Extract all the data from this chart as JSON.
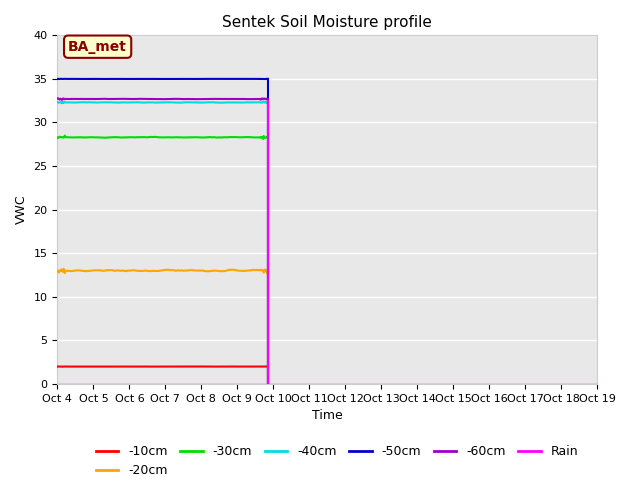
{
  "title": "Sentek Soil Moisture profile",
  "xlabel": "Time",
  "ylabel": "VWC",
  "xlim_days": [
    0,
    15
  ],
  "ylim": [
    0,
    40
  ],
  "x_tick_labels": [
    "Oct 4",
    "Oct 5",
    "Oct 6",
    "Oct 7",
    "Oct 8",
    "Oct 9",
    "Oct 10",
    "Oct 11",
    "Oct 12",
    "Oct 13",
    "Oct 14",
    "Oct 15",
    "Oct 16",
    "Oct 17",
    "Oct 18",
    "Oct 19"
  ],
  "annotation_text": "BA_met",
  "cutoff_day": 5.85,
  "series": {
    "-10cm": {
      "color": "#ff0000",
      "value": 2.0,
      "noise": 0.01
    },
    "-20cm": {
      "color": "#ffa500",
      "value": 13.0,
      "noise": 0.15
    },
    "-30cm": {
      "color": "#00dd00",
      "value": 28.3,
      "noise": 0.06
    },
    "-40cm": {
      "color": "#00dddd",
      "value": 32.3,
      "noise": 0.05
    },
    "-50cm": {
      "color": "#0000cc",
      "value": 35.0,
      "noise": 0.01
    },
    "-60cm": {
      "color": "#9900cc",
      "value": 32.7,
      "noise": 0.04
    }
  },
  "rain_color": "#ff00ff",
  "background_color": "#e8e8e8",
  "grid_color": "#ffffff",
  "title_fontsize": 11,
  "label_fontsize": 9,
  "tick_fontsize": 8
}
